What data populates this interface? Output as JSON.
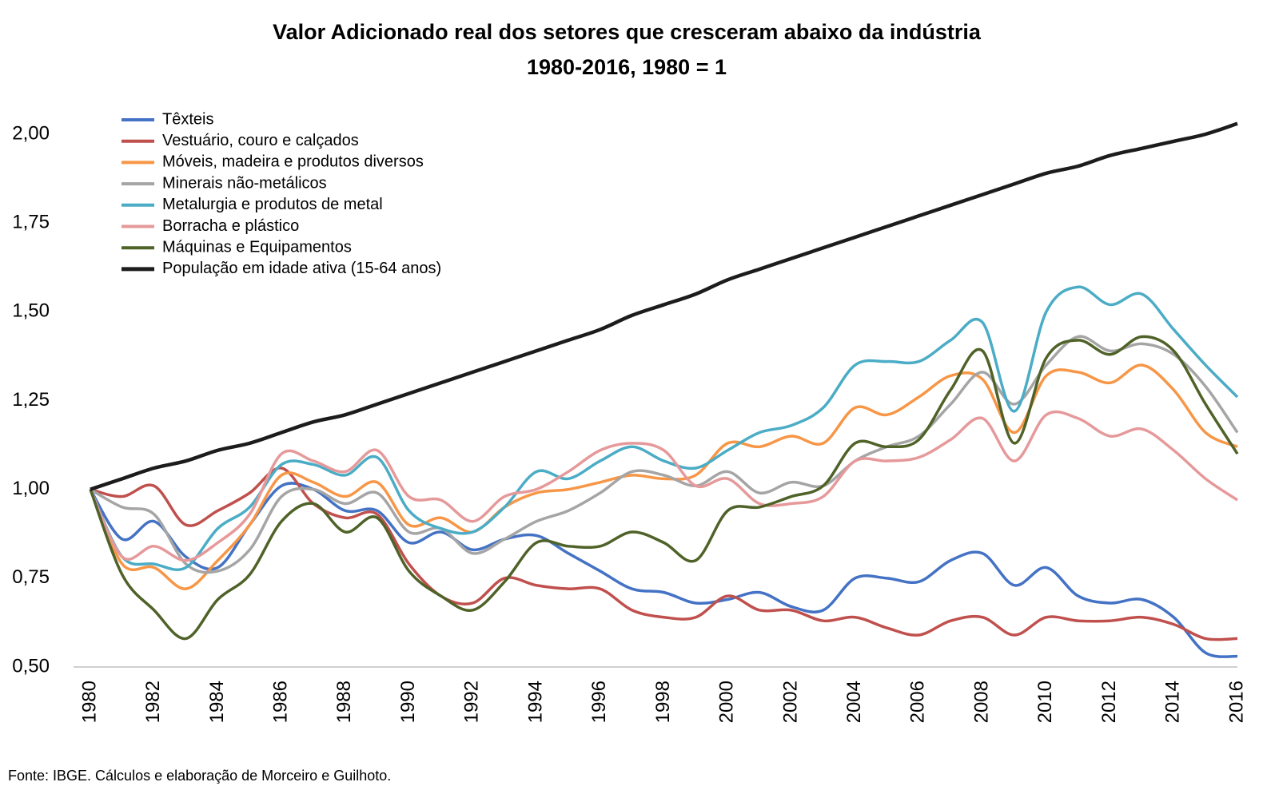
{
  "chart_data": {
    "type": "line",
    "title": "Valor Adicionado real dos setores que cresceram abaixo da indústria",
    "subtitle": "1980-2016, 1980 = 1",
    "source": "Fonte: IBGE. Cálculos e elaboração de Morceiro e Guilhoto.",
    "x": [
      1980,
      1981,
      1982,
      1983,
      1984,
      1985,
      1986,
      1987,
      1988,
      1989,
      1990,
      1991,
      1992,
      1993,
      1994,
      1995,
      1996,
      1997,
      1998,
      1999,
      2000,
      2001,
      2002,
      2003,
      2004,
      2005,
      2006,
      2007,
      2008,
      2009,
      2010,
      2011,
      2012,
      2013,
      2014,
      2015,
      2016
    ],
    "xlim": [
      1980,
      2016
    ],
    "xticks": [
      1980,
      1982,
      1984,
      1986,
      1988,
      1990,
      1992,
      1994,
      1996,
      1998,
      2000,
      2002,
      2004,
      2006,
      2008,
      2010,
      2012,
      2014,
      2016
    ],
    "ylim": [
      0.5,
      2.0
    ],
    "yticks": [
      {
        "value": 0.5,
        "label": "0,50"
      },
      {
        "value": 0.75,
        "label": "0,75"
      },
      {
        "value": 1.0,
        "label": "1,00"
      },
      {
        "value": 1.25,
        "label": "1,25"
      },
      {
        "value": 1.5,
        "label": "1,50"
      },
      {
        "value": 1.75,
        "label": "1,75"
      },
      {
        "value": 2.0,
        "label": "2,00"
      }
    ],
    "grid": false,
    "legend": "top-left",
    "series": [
      {
        "name": "Têxteis",
        "color": "#4472c4",
        "values": [
          1.0,
          0.86,
          0.91,
          0.81,
          0.78,
          0.9,
          1.01,
          1.0,
          0.94,
          0.94,
          0.85,
          0.88,
          0.83,
          0.86,
          0.87,
          0.82,
          0.77,
          0.72,
          0.71,
          0.68,
          0.69,
          0.71,
          0.67,
          0.66,
          0.75,
          0.75,
          0.74,
          0.8,
          0.82,
          0.73,
          0.78,
          0.7,
          0.68,
          0.69,
          0.64,
          0.54,
          0.53
        ]
      },
      {
        "name": "Vestuário, couro e calçados",
        "color": "#c0504d",
        "values": [
          1.0,
          0.98,
          1.01,
          0.9,
          0.94,
          0.99,
          1.06,
          0.96,
          0.92,
          0.93,
          0.79,
          0.7,
          0.68,
          0.75,
          0.73,
          0.72,
          0.72,
          0.66,
          0.64,
          0.64,
          0.7,
          0.66,
          0.66,
          0.63,
          0.64,
          0.61,
          0.59,
          0.63,
          0.64,
          0.59,
          0.64,
          0.63,
          0.63,
          0.64,
          0.62,
          0.58,
          0.58
        ]
      },
      {
        "name": "Móveis, madeira e produtos diversos",
        "color": "#f79646",
        "values": [
          1.0,
          0.79,
          0.78,
          0.72,
          0.8,
          0.9,
          1.04,
          1.02,
          0.98,
          1.02,
          0.9,
          0.92,
          0.88,
          0.95,
          0.99,
          1.0,
          1.02,
          1.04,
          1.03,
          1.04,
          1.13,
          1.12,
          1.15,
          1.13,
          1.23,
          1.21,
          1.26,
          1.32,
          1.31,
          1.16,
          1.32,
          1.33,
          1.3,
          1.35,
          1.28,
          1.16,
          1.12
        ]
      },
      {
        "name": "Minerais não-metálicos",
        "color": "#a5a5a5",
        "values": [
          1.0,
          0.95,
          0.93,
          0.79,
          0.77,
          0.83,
          0.98,
          1.0,
          0.96,
          0.99,
          0.88,
          0.89,
          0.82,
          0.86,
          0.91,
          0.94,
          0.99,
          1.05,
          1.04,
          1.01,
          1.05,
          0.99,
          1.02,
          1.01,
          1.08,
          1.12,
          1.15,
          1.24,
          1.33,
          1.24,
          1.35,
          1.43,
          1.39,
          1.41,
          1.38,
          1.29,
          1.16
        ]
      },
      {
        "name": "Metalurgia e produtos de metal",
        "color": "#4bacc6",
        "values": [
          1.0,
          0.81,
          0.79,
          0.78,
          0.89,
          0.95,
          1.07,
          1.07,
          1.04,
          1.09,
          0.94,
          0.89,
          0.88,
          0.95,
          1.05,
          1.03,
          1.08,
          1.12,
          1.08,
          1.06,
          1.11,
          1.16,
          1.18,
          1.23,
          1.35,
          1.36,
          1.36,
          1.42,
          1.47,
          1.22,
          1.5,
          1.57,
          1.52,
          1.55,
          1.45,
          1.35,
          1.26
        ]
      },
      {
        "name": "Borracha e plástico",
        "color": "#e6999a",
        "values": [
          1.0,
          0.81,
          0.84,
          0.8,
          0.85,
          0.93,
          1.1,
          1.08,
          1.05,
          1.11,
          0.98,
          0.97,
          0.91,
          0.98,
          1.0,
          1.05,
          1.11,
          1.13,
          1.11,
          1.01,
          1.03,
          0.96,
          0.96,
          0.98,
          1.08,
          1.08,
          1.09,
          1.14,
          1.2,
          1.08,
          1.21,
          1.2,
          1.15,
          1.17,
          1.11,
          1.03,
          0.97
        ]
      },
      {
        "name": "Máquinas e Equipamentos",
        "color": "#4f6228",
        "values": [
          1.0,
          0.76,
          0.66,
          0.58,
          0.69,
          0.76,
          0.91,
          0.96,
          0.88,
          0.92,
          0.77,
          0.7,
          0.66,
          0.74,
          0.85,
          0.84,
          0.84,
          0.88,
          0.85,
          0.8,
          0.94,
          0.95,
          0.98,
          1.01,
          1.13,
          1.12,
          1.14,
          1.28,
          1.39,
          1.13,
          1.37,
          1.42,
          1.38,
          1.43,
          1.39,
          1.24,
          1.1
        ]
      },
      {
        "name": "População em idade ativa (15-64 anos)",
        "color": "#1c1c1c",
        "values": [
          1.0,
          1.03,
          1.06,
          1.08,
          1.11,
          1.13,
          1.16,
          1.19,
          1.21,
          1.24,
          1.27,
          1.3,
          1.33,
          1.36,
          1.39,
          1.42,
          1.45,
          1.49,
          1.52,
          1.55,
          1.59,
          1.62,
          1.65,
          1.68,
          1.71,
          1.74,
          1.77,
          1.8,
          1.83,
          1.86,
          1.89,
          1.91,
          1.94,
          1.96,
          1.98,
          2.0,
          2.03
        ]
      }
    ]
  }
}
